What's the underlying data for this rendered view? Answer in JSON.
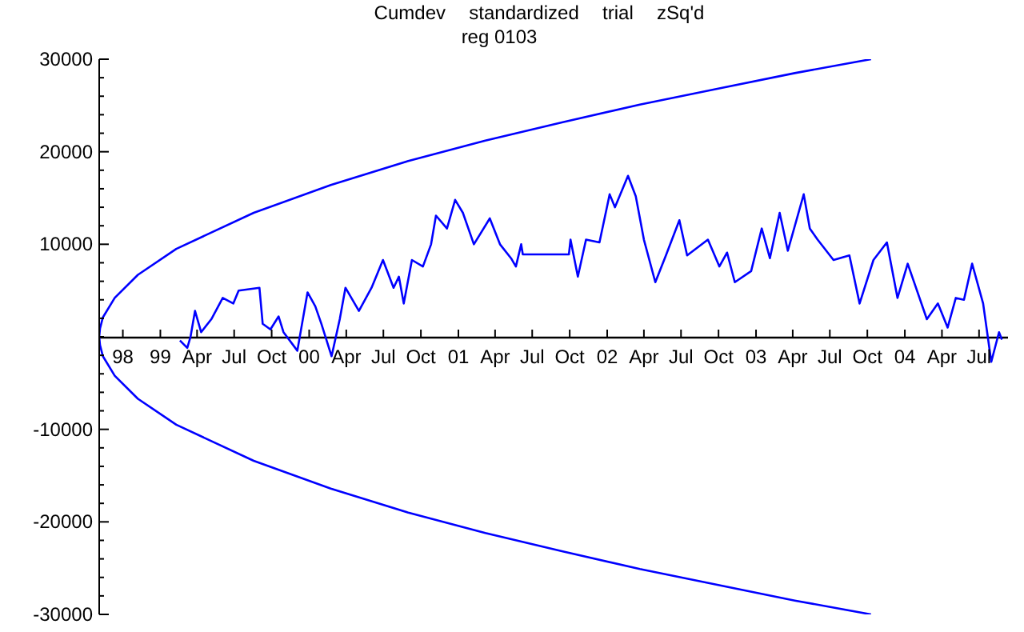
{
  "chart_data": {
    "type": "line",
    "title": "Cumdev  standardized  trial  zSq'd",
    "subtitle": "reg 0103",
    "xlim": [
      "1998-08-04",
      "2004-09-10"
    ],
    "ylim": [
      -30000,
      30000
    ],
    "xticks": [
      {
        "value": "1998-10-01",
        "label": "98"
      },
      {
        "value": "1999-01-01",
        "label": "99"
      },
      {
        "value": "1999-04-01",
        "label": "Apr"
      },
      {
        "value": "1999-07-01",
        "label": "Jul"
      },
      {
        "value": "1999-10-01",
        "label": "Oct"
      },
      {
        "value": "2000-01-01",
        "label": "00"
      },
      {
        "value": "2000-04-01",
        "label": "Apr"
      },
      {
        "value": "2000-07-01",
        "label": "Jul"
      },
      {
        "value": "2000-10-01",
        "label": "Oct"
      },
      {
        "value": "2001-01-01",
        "label": "01"
      },
      {
        "value": "2001-04-01",
        "label": "Apr"
      },
      {
        "value": "2001-07-01",
        "label": "Jul"
      },
      {
        "value": "2001-10-01",
        "label": "Oct"
      },
      {
        "value": "2002-01-01",
        "label": "02"
      },
      {
        "value": "2002-04-01",
        "label": "Apr"
      },
      {
        "value": "2002-07-01",
        "label": "Jul"
      },
      {
        "value": "2002-10-01",
        "label": "Oct"
      },
      {
        "value": "2003-01-01",
        "label": "03"
      },
      {
        "value": "2003-04-01",
        "label": "Apr"
      },
      {
        "value": "2003-07-01",
        "label": "Jul"
      },
      {
        "value": "2003-10-01",
        "label": "Oct"
      },
      {
        "value": "2004-01-01",
        "label": "04"
      },
      {
        "value": "2004-04-01",
        "label": "Apr"
      },
      {
        "value": "2004-07-01",
        "label": "Jul"
      }
    ],
    "yticks": [
      -30000,
      {
        "value": -28000,
        "label": null
      },
      {
        "value": -26000,
        "label": null
      },
      {
        "value": -24000,
        "label": null
      },
      {
        "value": -22000,
        "label": null
      },
      -20000,
      {
        "value": -18000,
        "label": null
      },
      {
        "value": -16000,
        "label": null
      },
      {
        "value": -14000,
        "label": null
      },
      {
        "value": -12000,
        "label": null
      },
      -10000,
      {
        "value": -8000,
        "label": null
      },
      {
        "value": -6000,
        "label": null
      },
      {
        "value": -4000,
        "label": null
      },
      {
        "value": -2000,
        "label": null
      },
      {
        "value": 0,
        "label": null
      },
      {
        "value": 2000,
        "label": null
      },
      {
        "value": 4000,
        "label": null
      },
      {
        "value": 6000,
        "label": null
      },
      {
        "value": 8000,
        "label": null
      },
      10000,
      {
        "value": 12000,
        "label": null
      },
      {
        "value": 14000,
        "label": null
      },
      {
        "value": 16000,
        "label": null
      },
      {
        "value": 18000,
        "label": null
      },
      20000,
      {
        "value": 22000,
        "label": null
      },
      {
        "value": 24000,
        "label": null
      },
      {
        "value": 26000,
        "label": null
      },
      {
        "value": 28000,
        "label": null
      },
      30000
    ],
    "marker": "none",
    "line_style": "solid",
    "series": [
      {
        "color": "#0000ff",
        "x": [
          "2003-10-10",
          "2003-04-06",
          "2002-09-28",
          "2002-03-22",
          "2001-09-14",
          "2001-03-08",
          "2000-08-31",
          "2000-02-23",
          "1999-08-18",
          "1999-02-09",
          "1998-11-07",
          "1998-09-11",
          "1998-08-13",
          "1998-08-06",
          "1998-08-04",
          "1998-08-06",
          "1998-08-13",
          "1998-09-11",
          "1998-11-07",
          "1999-02-09",
          "1999-08-18",
          "2000-02-23",
          "2000-08-31",
          "2001-03-08",
          "2001-09-14",
          "2002-03-22",
          "2002-09-28",
          "2003-04-06",
          "2003-10-10"
        ],
        "values": [
          30000,
          28500,
          26800,
          25100,
          23200,
          21200,
          19000,
          16400,
          13400,
          9500,
          6700,
          4200,
          2100,
          900,
          0,
          -900,
          -2100,
          -4200,
          -6700,
          -9500,
          -13400,
          -16400,
          -19000,
          -21200,
          -23200,
          -25100,
          -26800,
          -28500,
          -30000
        ]
      },
      {
        "color": "#0000ff",
        "x": [
          "1999-02-18",
          "1999-03-08",
          "1999-03-16",
          "1999-03-27",
          "1999-04-11",
          "1999-05-06",
          "1999-06-03",
          "1999-06-29",
          "1999-07-12",
          "1999-09-01",
          "1999-09-09",
          "1999-09-28",
          "1999-10-18",
          "1999-10-30",
          "1999-12-03",
          "1999-12-28",
          "2000-01-16",
          "2000-01-31",
          "2000-02-25",
          "2000-03-16",
          "2000-03-30",
          "2000-05-02",
          "2000-06-02",
          "2000-06-30",
          "2000-07-26",
          "2000-08-08",
          "2000-08-20",
          "2000-09-09",
          "2000-10-06",
          "2000-10-26",
          "2000-11-07",
          "2000-12-04",
          "2000-12-24",
          "2001-01-12",
          "2001-02-08",
          "2001-03-19",
          "2001-04-13",
          "2001-05-10",
          "2001-05-22",
          "2001-06-04",
          "2001-06-08",
          "2001-09-29",
          "2001-10-03",
          "2001-10-21",
          "2001-11-10",
          "2001-12-13",
          "2002-01-07",
          "2002-01-20",
          "2002-02-21",
          "2002-03-12",
          "2002-04-01",
          "2002-04-29",
          "2002-05-25",
          "2002-06-27",
          "2002-07-16",
          "2002-09-05",
          "2002-10-03",
          "2002-10-22",
          "2002-11-10",
          "2002-12-20",
          "2003-01-15",
          "2003-02-04",
          "2003-02-28",
          "2003-03-20",
          "2003-04-28",
          "2003-05-13",
          "2003-06-01",
          "2003-07-10",
          "2003-08-18",
          "2003-09-12",
          "2003-10-16",
          "2003-11-18",
          "2003-12-14",
          "2004-01-08",
          "2004-02-24",
          "2004-03-22",
          "2004-04-15",
          "2004-05-05",
          "2004-05-25",
          "2004-06-14",
          "2004-07-11",
          "2004-07-31",
          "2004-08-19",
          "2004-08-26"
        ],
        "values": [
          -400,
          -1200,
          0,
          2800,
          500,
          1900,
          4200,
          3600,
          5000,
          5300,
          1400,
          800,
          2200,
          500,
          -1500,
          4800,
          3300,
          1400,
          -2100,
          1900,
          5300,
          2800,
          5300,
          8300,
          5300,
          6500,
          3600,
          8300,
          7600,
          10000,
          13100,
          11700,
          14800,
          13400,
          10000,
          12800,
          10000,
          8500,
          7600,
          10000,
          8900,
          8900,
          10500,
          6500,
          10500,
          10200,
          15400,
          14000,
          17400,
          15200,
          10500,
          5900,
          8800,
          12600,
          8800,
          10500,
          7600,
          9100,
          5900,
          7100,
          11700,
          8500,
          13400,
          9300,
          15400,
          11700,
          10500,
          8300,
          8800,
          3600,
          8300,
          10200,
          4200,
          7900,
          1900,
          3600,
          1000,
          4200,
          4000,
          7900,
          3600,
          -2700,
          500,
          -300
        ]
      }
    ]
  }
}
